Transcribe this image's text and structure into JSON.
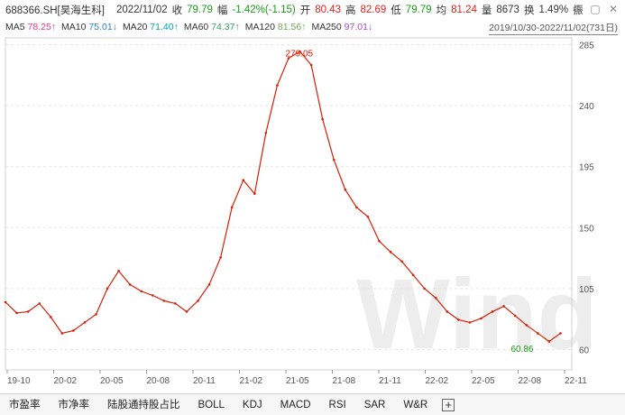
{
  "quote": {
    "code_name": "688366.SH[昊海生科]",
    "date": "2022/11/02",
    "close_label": "收",
    "close": "79.79",
    "change_label": "幅",
    "change": "-1.42%(-1.15)",
    "open_label": "开",
    "open": "80.43",
    "high_label": "高",
    "high": "82.69",
    "low_label": "低",
    "low": "79.79",
    "avg_label": "均",
    "avg": "81.24",
    "vol_label": "量",
    "vol": "8673",
    "turn_label": "换",
    "turn": "1.49%",
    "amp_label": "振"
  },
  "icons": [
    "gear-icon",
    "screenshot-icon",
    "close-icon"
  ],
  "ma": [
    {
      "label": "MA5",
      "value": "78.25↑",
      "color": "#e03a8f"
    },
    {
      "label": "MA10",
      "value": "75.01↓",
      "color": "#2a7fd4"
    },
    {
      "label": "MA20",
      "value": "71.40↑",
      "color": "#00a5b5"
    },
    {
      "label": "MA60",
      "value": "74.37↑",
      "color": "#2fa05a"
    },
    {
      "label": "MA120",
      "value": "81.56↑",
      "color": "#6aa84f"
    },
    {
      "label": "MA250",
      "value": "97.01↓",
      "color": "#b04cc9"
    }
  ],
  "range_label": "2019/10/30-2022/11/02(731日)",
  "chart_data": {
    "type": "line",
    "y_ticks": [
      "285",
      "240",
      "195",
      "150",
      "105",
      "60"
    ],
    "ylim": [
      45,
      290
    ],
    "x_ticks": [
      "19-10",
      "20-02",
      "20-05",
      "20-08",
      "20-11",
      "21-02",
      "21-05",
      "21-08",
      "21-11",
      "22-02",
      "22-05",
      "22-08",
      "22-11"
    ],
    "annotations": [
      {
        "text": "279.05",
        "x": 55.5,
        "y": 279.05
      },
      {
        "text": "60.86",
        "x": 95.3,
        "y": 60.86
      }
    ],
    "series": [
      {
        "color": "#d81e06",
        "x": [
          0,
          2,
          4,
          6,
          8,
          10,
          12,
          14,
          16,
          18,
          20,
          22,
          24,
          26,
          28,
          30,
          32,
          34,
          36,
          38,
          40,
          42,
          44,
          46,
          48,
          50,
          52,
          54,
          56,
          58,
          60,
          62,
          64,
          66,
          68,
          70,
          72,
          74,
          76,
          78,
          80,
          82,
          84,
          86,
          88,
          90,
          92,
          94,
          96,
          98
        ],
        "values": [
          95,
          87,
          88,
          94,
          84,
          72,
          74,
          80,
          86,
          105,
          118,
          108,
          103,
          100,
          96,
          94,
          88,
          96,
          108,
          128,
          165,
          185,
          175,
          220,
          255,
          275,
          280,
          270,
          230,
          200,
          178,
          165,
          158,
          140,
          132,
          125,
          115,
          105,
          98,
          88,
          82,
          80,
          83,
          88,
          92,
          85,
          78,
          72,
          66,
          72
        ]
      }
    ]
  },
  "watermark": "Wind",
  "tabs": [
    "市盈率",
    "市净率",
    "陆股通持股占比",
    "BOLL",
    "KDJ",
    "MACD",
    "RSI",
    "SAR",
    "W&R"
  ]
}
